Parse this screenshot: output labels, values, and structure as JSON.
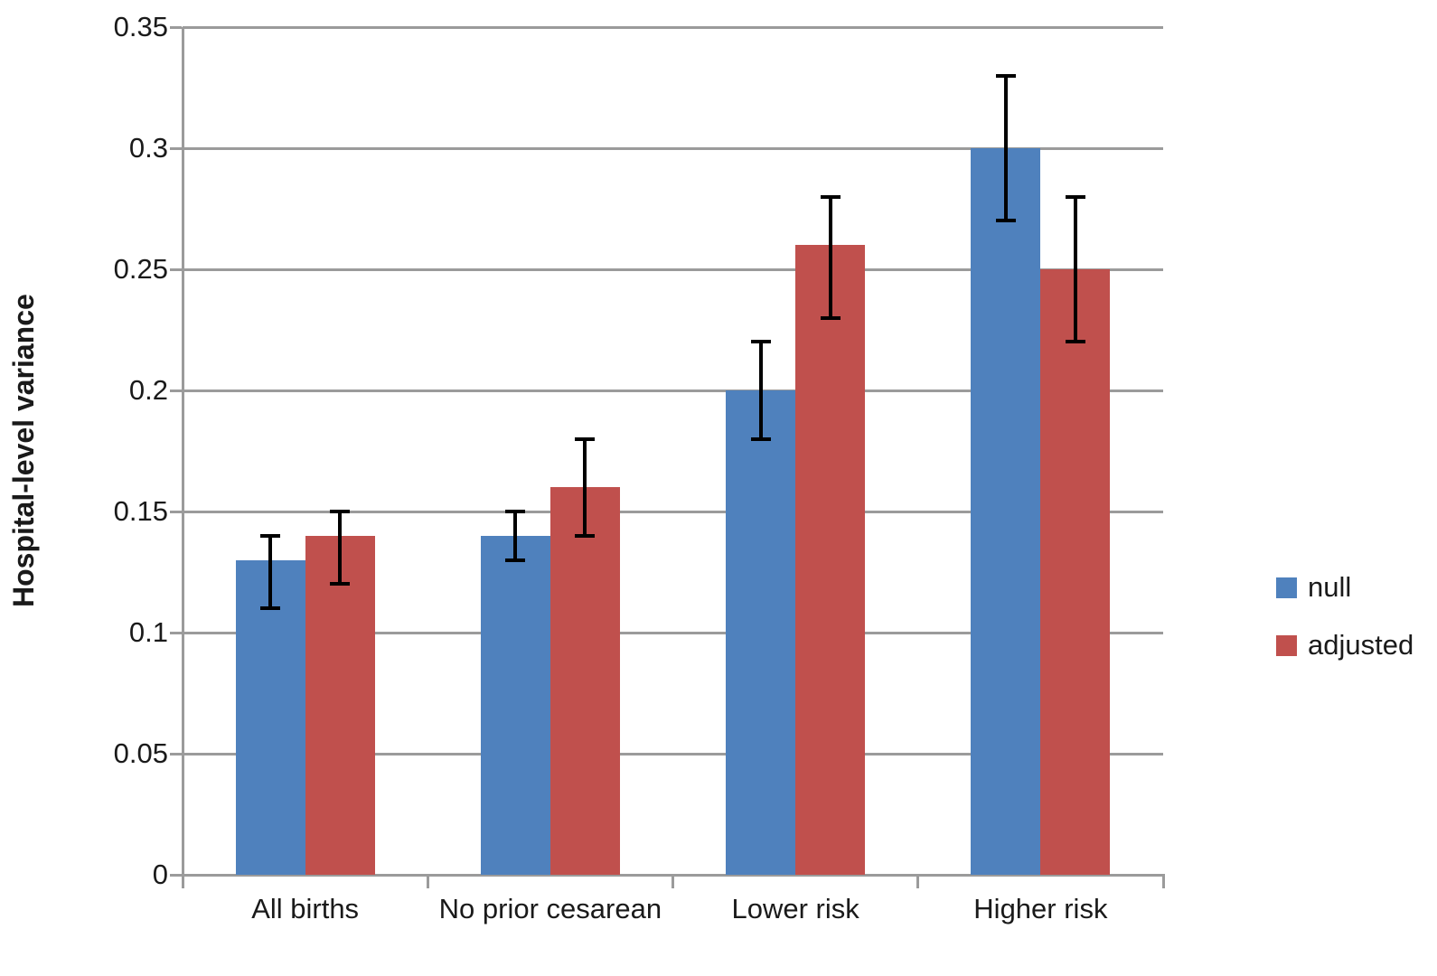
{
  "chart_data": {
    "type": "bar",
    "title": "",
    "xlabel": "",
    "ylabel": "Hospital-level variance",
    "ylim": [
      0,
      0.35
    ],
    "grid": true,
    "legend_position": "right",
    "ytick_values": [
      0,
      0.05,
      0.1,
      0.15,
      0.2,
      0.25,
      0.3,
      0.35
    ],
    "ytick_labels": [
      "0",
      "0.05",
      "0.1",
      "0.15",
      "0.2",
      "0.25",
      "0.3",
      "0.35"
    ],
    "categories": [
      "All births",
      "No prior cesarean",
      "Lower risk",
      "Higher risk"
    ],
    "series": [
      {
        "name": "null",
        "color": "#4F81BD",
        "values": [
          0.13,
          0.14,
          0.2,
          0.3
        ],
        "error_low": [
          0.11,
          0.13,
          0.18,
          0.27
        ],
        "error_high": [
          0.14,
          0.15,
          0.22,
          0.33
        ]
      },
      {
        "name": "adjusted",
        "color": "#C0504D",
        "values": [
          0.14,
          0.16,
          0.26,
          0.25
        ],
        "error_low": [
          0.12,
          0.14,
          0.23,
          0.22
        ],
        "error_high": [
          0.15,
          0.18,
          0.28,
          0.28
        ]
      }
    ],
    "legend": {
      "items": [
        {
          "label": "null",
          "color": "#4F81BD"
        },
        {
          "label": "adjusted",
          "color": "#C0504D"
        }
      ]
    },
    "colors": {
      "gridline": "#9B9B9B",
      "axis": "#9B9B9B",
      "error_bar": "#000000",
      "text": "#1A1A1A"
    }
  }
}
